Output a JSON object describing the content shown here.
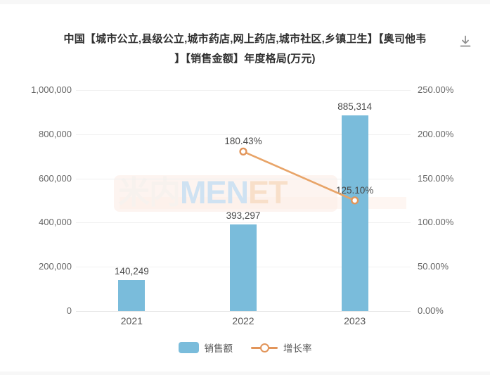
{
  "title": {
    "line1": "中国【城市公立,县级公立,城市药店,网上药店,城市社区,乡镇卫生】【奥司他韦",
    "line2": "】【销售金额】年度格局(万元)"
  },
  "toolbar": {
    "download_tooltip": "下载"
  },
  "watermark": {
    "cn": "米内",
    "en1": "MEN",
    "en2": "ET"
  },
  "legend": {
    "items": [
      {
        "label": "销售额",
        "type": "bar",
        "color": "#7abcdb"
      },
      {
        "label": "增长率",
        "type": "line",
        "color": "#e2955a"
      }
    ]
  },
  "chart_data": {
    "type": "bar",
    "title": "中国【城市公立,县级公立,城市药店,网上药店,城市社区,乡镇卫生】【奥司他韦】【销售金额】年度格局(万元)",
    "unit": "万元",
    "categories": [
      "2021",
      "2022",
      "2023"
    ],
    "series": [
      {
        "name": "销售额",
        "type": "bar",
        "axis": "left",
        "color": "#7abcdb",
        "values": [
          140249,
          393297,
          885314
        ],
        "labels": [
          "140,249",
          "393,297",
          "885,314"
        ]
      },
      {
        "name": "增长率",
        "type": "line",
        "axis": "right",
        "color": "#e8a468",
        "marker_stroke": "#e2955a",
        "values": [
          null,
          180.43,
          125.1
        ],
        "labels": [
          "",
          "180.43%",
          "125.10%"
        ]
      }
    ],
    "left_axis": {
      "min": 0,
      "max": 1000000,
      "ticks": [
        "1,000,000",
        "800,000",
        "600,000",
        "400,000",
        "200,000",
        "0"
      ]
    },
    "right_axis": {
      "min": 0,
      "max": 250,
      "ticks": [
        "250.00%",
        "200.00%",
        "150.00%",
        "100.00%",
        "50.00%",
        "0.00%"
      ]
    },
    "grid": true,
    "legend_position": "bottom"
  }
}
